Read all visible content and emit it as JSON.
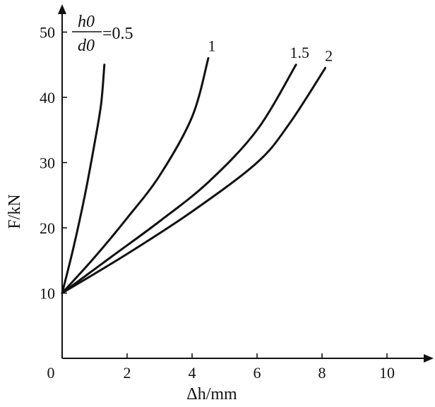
{
  "chart_data": {
    "type": "line",
    "xlabel": "Δh/mm",
    "ylabel": "F/kN",
    "xlim": [
      0,
      11
    ],
    "ylim": [
      0,
      55
    ],
    "x_ticks": [
      "0",
      "2",
      "4",
      "6",
      "8",
      "10"
    ],
    "y_ticks": [
      "10",
      "20",
      "30",
      "40",
      "50"
    ],
    "grid": false,
    "ratio_label": {
      "numerator": "h0",
      "denominator": "d0",
      "equals": "=0.5"
    },
    "series": [
      {
        "name": "0.5",
        "x": [
          0,
          0.35,
          0.7,
          1.0,
          1.2,
          1.3
        ],
        "y": [
          10,
          17,
          25,
          33,
          39,
          45
        ]
      },
      {
        "name": "1",
        "x": [
          0,
          1.0,
          2.0,
          3.0,
          4.0,
          4.5
        ],
        "y": [
          10,
          15.5,
          21.5,
          28,
          37,
          46
        ]
      },
      {
        "name": "1.5",
        "x": [
          0,
          1.5,
          3.0,
          4.5,
          6.0,
          7.2
        ],
        "y": [
          10,
          15.5,
          21,
          27,
          35,
          45
        ]
      },
      {
        "name": "2",
        "x": [
          0,
          2.0,
          4.0,
          6.0,
          7.0,
          8.1
        ],
        "y": [
          10,
          16,
          22.5,
          30,
          36,
          44.5
        ]
      }
    ]
  }
}
